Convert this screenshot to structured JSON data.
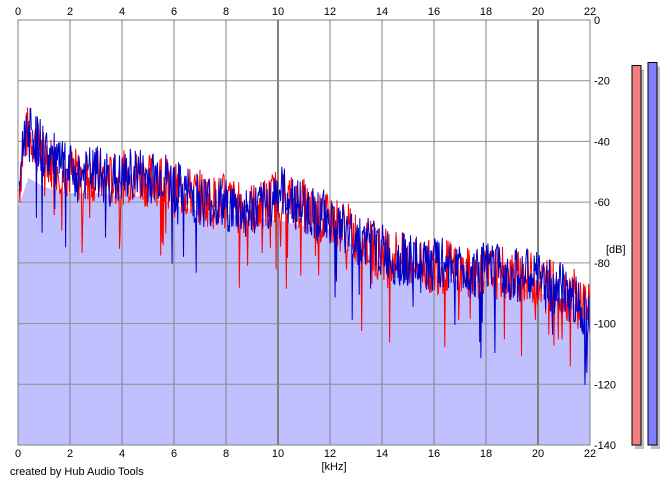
{
  "credit": "created by Hub Audio Tools",
  "chart_data": {
    "type": "line",
    "title": "",
    "xlabel": "[kHz]",
    "ylabel": "[dB]",
    "xlim": [
      0,
      22
    ],
    "ylim": [
      -140,
      0
    ],
    "x_ticks": [
      0,
      2,
      4,
      6,
      8,
      10,
      12,
      14,
      16,
      18,
      20,
      22
    ],
    "y_ticks": [
      0,
      -20,
      -40,
      -60,
      -80,
      -100,
      -120,
      -140
    ],
    "x_tick_labels": [
      "0",
      "2",
      "4",
      "6",
      "8",
      "10",
      "12",
      "14",
      "16",
      "18",
      "20",
      "22"
    ],
    "y_tick_labels": [
      "0",
      "-20",
      "-40",
      "-60",
      "-80",
      "-100",
      "-120",
      "-140"
    ],
    "grid": true,
    "fill": {
      "color": "#c0c0ff",
      "envelope_x": [
        0,
        0.4,
        1,
        2,
        3,
        4,
        5,
        6,
        7,
        8,
        9,
        10,
        11,
        12,
        13,
        14,
        15,
        16,
        17,
        18,
        19,
        20,
        21,
        22
      ],
      "envelope_y": [
        -62,
        -52,
        -55,
        -57,
        -57,
        -58,
        -58,
        -61,
        -63,
        -64,
        -65,
        -66,
        -68,
        -69,
        -75,
        -80,
        -83,
        -84,
        -86,
        -86,
        -87,
        -90,
        -92,
        -96
      ]
    },
    "series": [
      {
        "color": "#ff0000",
        "x": [
          0,
          0.2,
          0.4,
          0.6,
          1,
          1.5,
          2,
          2.5,
          3,
          3.5,
          4,
          4.5,
          5,
          5.5,
          6,
          6.5,
          7,
          7.5,
          8,
          8.5,
          9,
          9.5,
          10,
          10.5,
          11,
          11.5,
          12,
          12.5,
          13,
          13.5,
          14,
          14.5,
          15,
          15.5,
          16,
          16.5,
          17,
          17.5,
          18,
          18.5,
          19,
          19.5,
          20,
          20.5,
          21,
          21.5,
          22
        ],
        "y": [
          -60,
          -42,
          -36,
          -40,
          -45,
          -48,
          -50,
          -52,
          -51,
          -53,
          -52,
          -51,
          -53,
          -52,
          -56,
          -57,
          -58,
          -60,
          -59,
          -62,
          -62,
          -61,
          -57,
          -60,
          -61,
          -66,
          -66,
          -68,
          -71,
          -74,
          -77,
          -77,
          -80,
          -80,
          -82,
          -81,
          -83,
          -84,
          -84,
          -83,
          -85,
          -84,
          -86,
          -87,
          -90,
          -91,
          -96
        ]
      },
      {
        "color": "#0000c8",
        "x": [
          0,
          0.2,
          0.4,
          0.6,
          1,
          1.5,
          2,
          2.5,
          3,
          3.5,
          4,
          4.5,
          5,
          5.5,
          6,
          6.5,
          7,
          7.5,
          8,
          8.5,
          9,
          9.5,
          10,
          10.5,
          11,
          11.5,
          12,
          12.5,
          13,
          13.5,
          14,
          14.5,
          15,
          15.5,
          16,
          16.5,
          17,
          17.5,
          18,
          18.5,
          19,
          19.5,
          20,
          20.5,
          21,
          21.5,
          22
        ],
        "y": [
          -58,
          -40,
          -33,
          -38,
          -43,
          -47,
          -50,
          -51,
          -50,
          -52,
          -53,
          -50,
          -52,
          -51,
          -55,
          -57,
          -59,
          -60,
          -61,
          -63,
          -63,
          -62,
          -56,
          -59,
          -62,
          -64,
          -65,
          -69,
          -72,
          -73,
          -76,
          -79,
          -79,
          -81,
          -81,
          -80,
          -82,
          -83,
          -82,
          -82,
          -84,
          -84,
          -85,
          -88,
          -89,
          -93,
          -97
        ]
      }
    ]
  },
  "meters": [
    {
      "color": "#f08080",
      "level_db": -15
    },
    {
      "color": "#8080ff",
      "level_db": -14
    }
  ]
}
